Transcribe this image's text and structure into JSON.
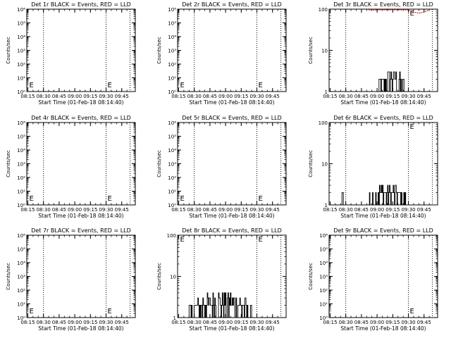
{
  "chart_data": [
    {
      "type": "line",
      "title": "Det 1r BLACK = Events, RED = LLD",
      "xlabel": "Start Time (01-Feb-18 08:14:40)",
      "ylabel": "Counts/sec",
      "yscale": "log",
      "ylim": [
        1,
        1000000
      ],
      "ytick_labels": [
        "10⁰",
        "10¹",
        "10²",
        "10³",
        "10⁴",
        "10⁵",
        "10⁶"
      ],
      "xtick_labels": [
        "08:15",
        "08:30",
        "08:45",
        "09:00",
        "09:15",
        "09:30",
        "09:45"
      ],
      "vlines_dotted": [
        "08:30",
        "09:30",
        "09:53"
      ],
      "markers": [
        {
          "label": "E",
          "x": "08:15"
        },
        {
          "label": "E",
          "x": "09:30"
        }
      ],
      "series": []
    },
    {
      "type": "line",
      "title": "Det 2r BLACK = Events, RED = LLD",
      "xlabel": "Start Time (01-Feb-18 08:14:40)",
      "ylabel": "Counts/sec",
      "yscale": "log",
      "ylim": [
        1,
        1000000
      ],
      "ytick_labels": [
        "10⁰",
        "10¹",
        "10²",
        "10³",
        "10⁴",
        "10⁵",
        "10⁶"
      ],
      "xtick_labels": [
        "08:15",
        "08:30",
        "08:45",
        "09:00",
        "09:15",
        "09:30",
        "09:45"
      ],
      "vlines_dotted": [
        "08:30",
        "09:30",
        "09:53"
      ],
      "markers": [
        {
          "label": "E",
          "x": "08:15"
        },
        {
          "label": "E",
          "x": "09:30"
        }
      ],
      "series": []
    },
    {
      "type": "line",
      "title": "Det 3r BLACK = Events, RED = LLD",
      "xlabel": "Start Time (01-Feb-18 08:14:40)",
      "ylabel": "Counts/sec",
      "yscale": "log",
      "ylim": [
        1,
        100
      ],
      "ytick_labels": [
        "1",
        "10",
        "100"
      ],
      "xtick_labels": [
        "08:15",
        "08:30",
        "08:45",
        "09:00",
        "09:15",
        "09:30",
        "09:45"
      ],
      "vlines_dotted": [
        "08:30",
        "09:30",
        "09:53"
      ],
      "markers": [
        {
          "label": "E",
          "x": "09:30"
        }
      ],
      "series": [
        {
          "color": "#000000",
          "t_start": "09:00",
          "t_end": "09:27",
          "low": 1,
          "high": 3
        },
        {
          "color": "#cc0000",
          "points": [
            [
              "08:52",
              100
            ],
            [
              "08:55",
              95
            ],
            [
              "09:00",
              98
            ],
            [
              "09:10",
              100
            ],
            [
              "09:20",
              100
            ],
            [
              "09:30",
              100
            ],
            [
              "09:35",
              85
            ],
            [
              "09:40",
              80
            ],
            [
              "09:45",
              85
            ],
            [
              "09:50",
              100
            ]
          ]
        }
      ]
    },
    {
      "type": "line",
      "title": "Det 4r BLACK = Events, RED = LLD",
      "xlabel": "Start Time (01-Feb-18 08:14:40)",
      "ylabel": "Counts/sec",
      "yscale": "log",
      "ylim": [
        1,
        1000000
      ],
      "ytick_labels": [
        "10⁰",
        "10¹",
        "10²",
        "10³",
        "10⁴",
        "10⁵",
        "10⁶"
      ],
      "xtick_labels": [
        "08:15",
        "08:30",
        "08:45",
        "09:00",
        "09:15",
        "09:30",
        "09:45"
      ],
      "vlines_dotted": [
        "08:30",
        "09:30",
        "09:53"
      ],
      "markers": [
        {
          "label": "E",
          "x": "08:15"
        },
        {
          "label": "E",
          "x": "09:30"
        }
      ],
      "series": []
    },
    {
      "type": "line",
      "title": "Det 5r BLACK = Events, RED = LLD",
      "xlabel": "Start Time (01-Feb-18 08:14:40)",
      "ylabel": "Counts/sec",
      "yscale": "log",
      "ylim": [
        1,
        1000000
      ],
      "ytick_labels": [
        "10⁰",
        "10¹",
        "10²",
        "10³",
        "10⁴",
        "10⁵",
        "10⁶"
      ],
      "xtick_labels": [
        "08:15",
        "08:30",
        "08:45",
        "09:00",
        "09:15",
        "09:30",
        "09:45"
      ],
      "vlines_dotted": [
        "08:30",
        "09:30",
        "09:53"
      ],
      "markers": [
        {
          "label": "E",
          "x": "08:15"
        },
        {
          "label": "E",
          "x": "09:30"
        }
      ],
      "series": []
    },
    {
      "type": "line",
      "title": "Det 6r BLACK = Events, RED = LLD",
      "xlabel": "Start Time (01-Feb-18 08:14:40)",
      "ylabel": "Counts/sec",
      "yscale": "log",
      "ylim": [
        1,
        100
      ],
      "ytick_labels": [
        "1",
        "10",
        "100"
      ],
      "xtick_labels": [
        "08:15",
        "08:30",
        "08:45",
        "09:00",
        "09:15",
        "09:30",
        "09:45"
      ],
      "vlines_dotted": [
        "08:30",
        "09:30",
        "09:53"
      ],
      "markers": [
        {
          "label": "E",
          "x": "09:30"
        }
      ],
      "series": [
        {
          "color": "#000000",
          "t_start": "08:49",
          "t_end": "09:28",
          "low": 1,
          "high": 3,
          "isolated": [
            "08:27"
          ]
        }
      ]
    },
    {
      "type": "line",
      "title": "Det 7r BLACK = Events, RED = LLD",
      "xlabel": "Start Time (01-Feb-18 08:14:40)",
      "ylabel": "Counts/sec",
      "yscale": "log",
      "ylim": [
        1,
        1000000
      ],
      "ytick_labels": [
        "10⁰",
        "10¹",
        "10²",
        "10³",
        "10⁴",
        "10⁵",
        "10⁶"
      ],
      "xtick_labels": [
        "08:15",
        "08:30",
        "08:45",
        "09:00",
        "09:15",
        "09:30",
        "09:45"
      ],
      "vlines_dotted": [
        "08:30",
        "09:30",
        "09:53"
      ],
      "markers": [
        {
          "label": "E",
          "x": "08:15"
        },
        {
          "label": "E",
          "x": "09:30"
        }
      ],
      "series": []
    },
    {
      "type": "line",
      "title": "Det 8r BLACK = Events, RED = LLD",
      "xlabel": "Start Time (01-Feb-18 08:14:40)",
      "ylabel": "Counts/sec",
      "yscale": "log",
      "ylim": [
        1,
        100
      ],
      "ytick_labels": [
        "1",
        "10",
        "100"
      ],
      "xtick_labels": [
        "08:15",
        "08:30",
        "08:45",
        "09:00",
        "09:15",
        "09:30",
        "09:45"
      ],
      "vlines_dotted": [
        "08:30",
        "09:30",
        "09:53"
      ],
      "markers": [
        {
          "label": "E",
          "x": "08:15"
        },
        {
          "label": "E",
          "x": "09:30"
        }
      ],
      "series": [
        {
          "color": "#000000",
          "t_start": "08:22",
          "t_end": "09:28",
          "low": 1,
          "high": 4
        }
      ]
    },
    {
      "type": "line",
      "title": "Det 9r BLACK = Events, RED = LLD",
      "xlabel": "Start Time (01-Feb-18 08:14:40)",
      "ylabel": "Counts/sec",
      "yscale": "log",
      "ylim": [
        1,
        1000000
      ],
      "ytick_labels": [
        "10⁰",
        "10¹",
        "10²",
        "10³",
        "10⁴",
        "10⁵",
        "10⁶"
      ],
      "xtick_labels": [
        "08:15",
        "08:30",
        "08:45",
        "09:00",
        "09:15",
        "09:30",
        "09:45"
      ],
      "vlines_dotted": [
        "08:30",
        "09:30",
        "09:53"
      ],
      "markers": [
        {
          "label": "E",
          "x": "09:30"
        }
      ],
      "series": []
    }
  ]
}
